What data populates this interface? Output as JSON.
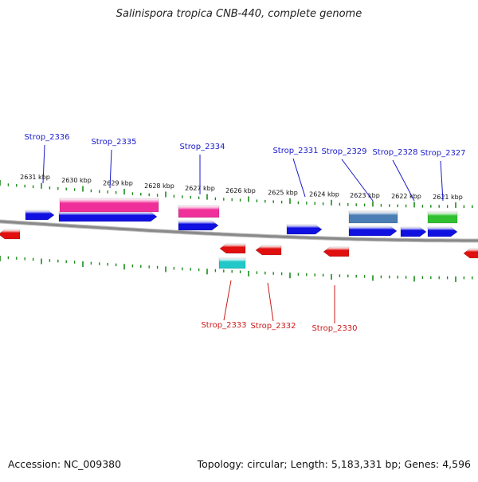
{
  "title": "Salinispora tropica CNB-440, complete genome",
  "footer": {
    "accession": "Accession: NC_009380",
    "summary": "Topology: circular; Length: 5,183,331 bp; Genes: 4,596"
  },
  "scale_labels": [
    "2631 kbp",
    "2630 kbp",
    "2629 kbp",
    "2628 kbp",
    "2627 kbp",
    "2626 kbp",
    "2625 kbp",
    "2624 kbp",
    "2623 kbp",
    "2622 kbp",
    "2621 kbp"
  ],
  "forward_labels": [
    "Strop_2336",
    "Strop_2335",
    "Strop_2334",
    "Strop_2331",
    "Strop_2329",
    "Strop_2328",
    "Strop_2327"
  ],
  "reverse_labels": [
    "Strop_2333",
    "Strop_2332",
    "Strop_2330"
  ],
  "colors": {
    "forward_gene": "#1010e0",
    "reverse_gene": "#e01010",
    "forward_label": "#1a1acc",
    "reverse_label": "#cc1a1a",
    "pink_feature": "#f0309a",
    "cyan_feature": "#20c8c8",
    "steel_feature": "#4a7eb4",
    "green_feature": "#30c030",
    "backbone": "#8a8a8a",
    "ticks": "#1a8a1a"
  }
}
